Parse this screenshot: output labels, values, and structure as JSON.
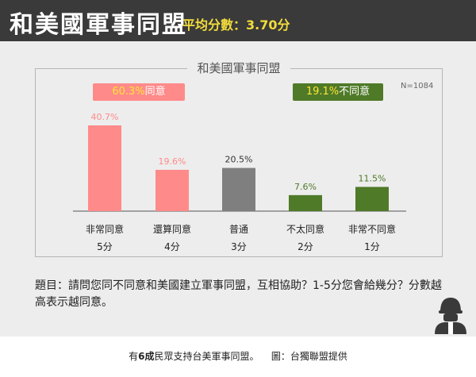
{
  "header": {
    "title": "和美國軍事同盟",
    "subtitle": "平均分數：3.70分"
  },
  "chart_frame_title": "和美國軍事同盟",
  "sample_size": "N=1084",
  "badges": {
    "agree_pct": "60.3%",
    "agree_label": "同意",
    "disagree_pct": "19.1%",
    "disagree_label": "不同意"
  },
  "chart_data": {
    "type": "bar",
    "title": "和美國軍事同盟",
    "categories": [
      "非常同意",
      "還算同意",
      "普通",
      "不太同意",
      "非常不同意"
    ],
    "scores": [
      "5分",
      "4分",
      "3分",
      "2分",
      "1分"
    ],
    "values": [
      40.7,
      19.6,
      20.5,
      7.6,
      11.5
    ],
    "value_labels": [
      "40.7%",
      "19.6%",
      "20.5%",
      "7.6%",
      "11.5%"
    ],
    "colors": [
      "#ff8a8a",
      "#ff8a8a",
      "#7f7f7f",
      "#4f7a28",
      "#4f7a28"
    ],
    "label_colors": [
      "#ff8a8a",
      "#ff8a8a",
      "#333333",
      "#4f7a28",
      "#4f7a28"
    ],
    "ylim": [
      0,
      45
    ]
  },
  "question": "題目：請問您同不同意和美國建立軍事同盟，互相協助？1-5分您會給幾分？分數越高表示越同意。",
  "footer": {
    "text_a": "有",
    "text_b": "6成",
    "text_c": "民眾支持台美軍事同盟。",
    "credit": "圖：台獨聯盟提供"
  }
}
